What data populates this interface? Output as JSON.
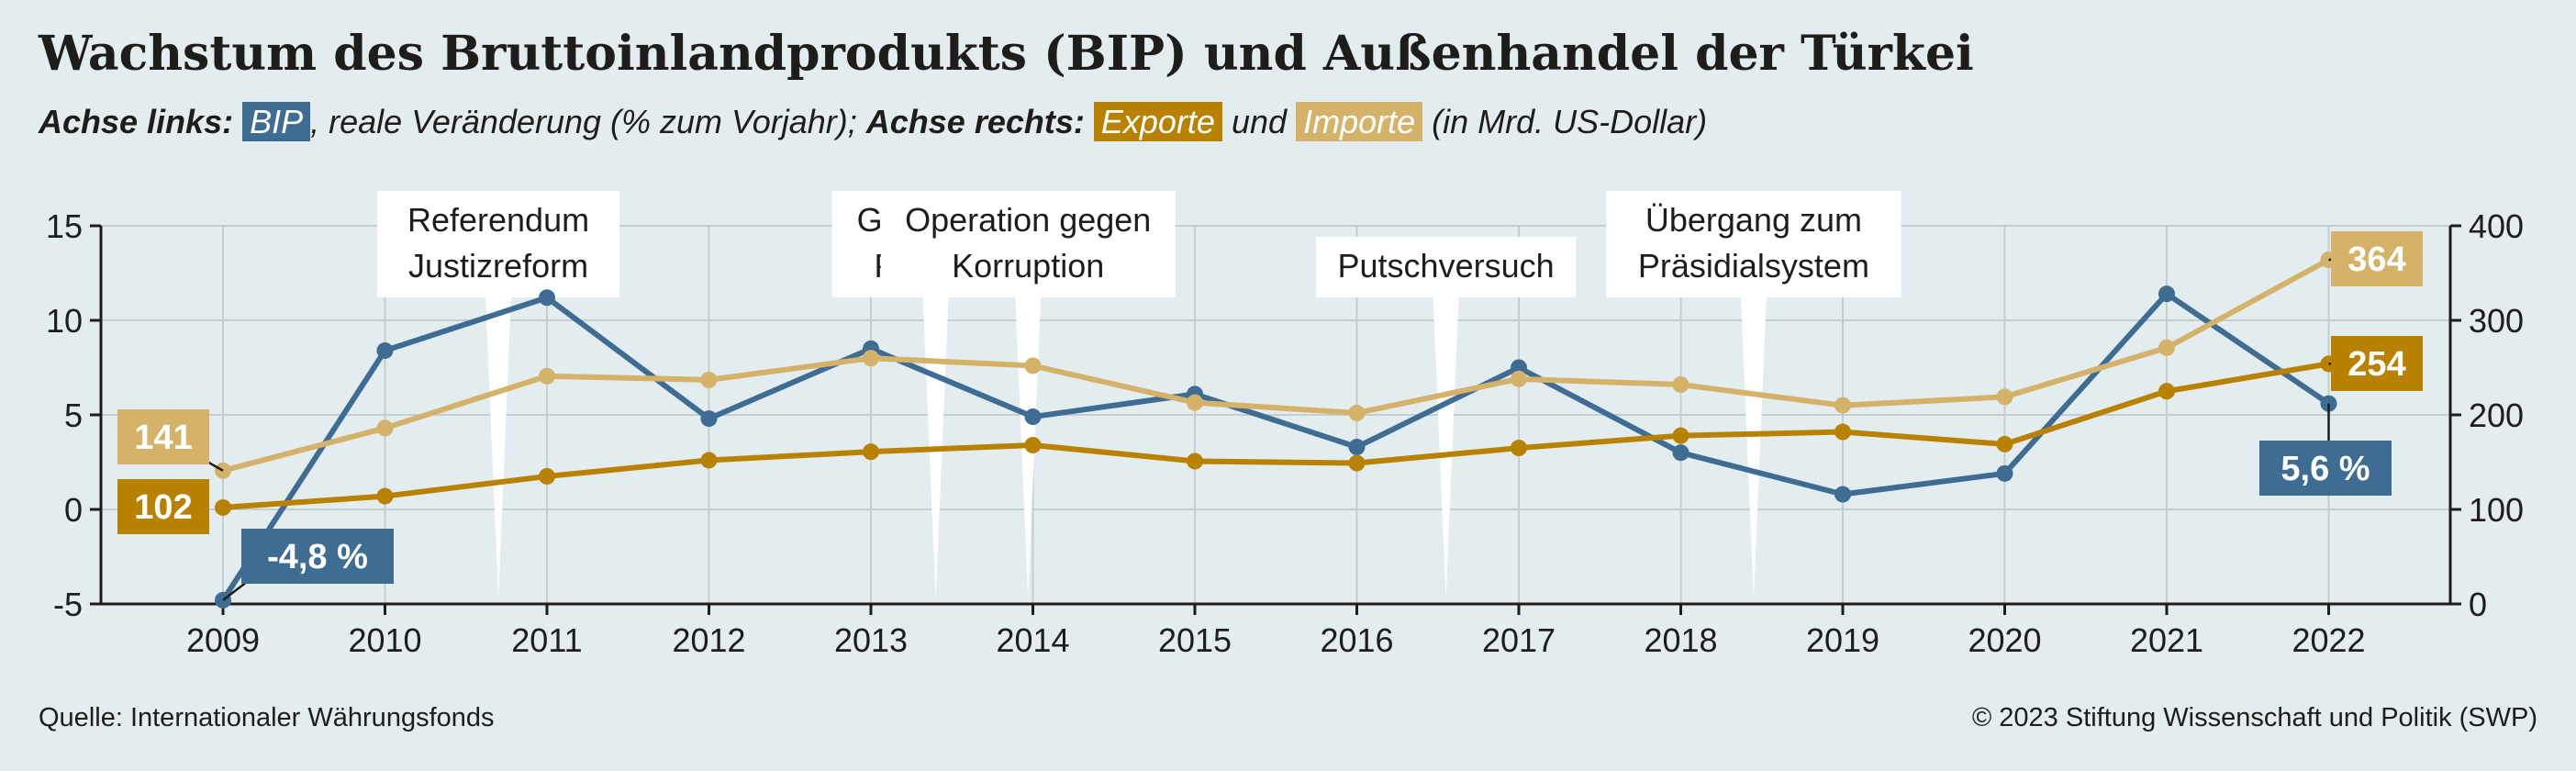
{
  "title": "Wachstum des Bruttoinlandprodukts (BIP) und Außenhandel der Türkei",
  "subtitle": {
    "left_axis_label": "Achse links:",
    "bip_tag": "BIP",
    "bip_desc": ", reale Veränderung (% zum Vorjahr);",
    "right_axis_label": "Achse rechts:",
    "exports_tag": "Exporte",
    "and": "und",
    "imports_tag": "Importe",
    "unit_desc": "(in Mrd. US-Dollar)"
  },
  "footer": {
    "source": "Quelle: Internationaler Währungsfonds",
    "copyright": "© 2023 Stiftung Wissenschaft und Politik (SWP)"
  },
  "colors": {
    "bip": "#3e6c93",
    "exports": "#b88200",
    "imports": "#d4b26a",
    "grid": "#c3ced1",
    "axis": "#1d1d1b"
  },
  "chart_data": {
    "type": "line",
    "x": [
      2009,
      2010,
      2011,
      2012,
      2013,
      2014,
      2015,
      2016,
      2017,
      2018,
      2019,
      2020,
      2021,
      2022
    ],
    "y_left": {
      "ticks": [
        15,
        10,
        5,
        0,
        -5
      ],
      "lim": [
        -5,
        15
      ]
    },
    "y_right": {
      "ticks": [
        400,
        300,
        200,
        100,
        0
      ],
      "lim": [
        0,
        400
      ]
    },
    "grid": true,
    "series": [
      {
        "key": "bip",
        "axis": "left",
        "values": [
          -4.8,
          8.4,
          11.2,
          4.8,
          8.5,
          4.9,
          6.1,
          3.3,
          7.5,
          3.0,
          0.8,
          1.9,
          11.4,
          5.6
        ]
      },
      {
        "key": "exports",
        "axis": "right",
        "values": [
          102,
          114,
          135,
          152,
          161,
          168,
          151,
          149,
          165,
          178,
          182,
          169,
          225,
          254
        ]
      },
      {
        "key": "imports",
        "axis": "right",
        "values": [
          141,
          186,
          241,
          237,
          260,
          252,
          213,
          202,
          238,
          232,
          210,
          219,
          271,
          364
        ]
      }
    ],
    "value_labels": {
      "bip_first": "-4,8 %",
      "bip_last": "5,6 %",
      "exports_first": "102",
      "exports_last": "254",
      "imports_first": "141",
      "imports_last": "364"
    },
    "annotations": [
      {
        "lines": [
          "Referendum",
          "Justizreform"
        ],
        "x": 2010.7
      },
      {
        "lines": [
          "Gezi-Park-",
          "Proteste"
        ],
        "x": 2013.4
      },
      {
        "lines": [
          "Operation gegen",
          "Korruption"
        ],
        "x": 2013.97
      },
      {
        "lines": [
          "Putschversuch"
        ],
        "x": 2016.55
      },
      {
        "lines": [
          "Übergang zum",
          "Präsidialsystem"
        ],
        "x": 2018.45
      }
    ]
  }
}
